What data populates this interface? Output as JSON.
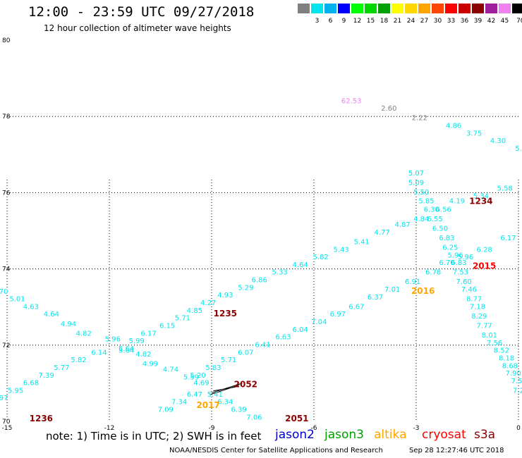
{
  "header": {
    "title": "12:00 - 23:59 UTC 09/27/2018",
    "subtitle": "12 hour collection of altimeter wave heights"
  },
  "color_scale": {
    "unit": "(ft)",
    "items": [
      {
        "label": "",
        "color": "#808080"
      },
      {
        "label": "3",
        "color": "#00e5ee"
      },
      {
        "label": "6",
        "color": "#00b2ee"
      },
      {
        "label": "9",
        "color": "#0000ff"
      },
      {
        "label": "12",
        "color": "#00ff00"
      },
      {
        "label": "15",
        "color": "#00d700"
      },
      {
        "label": "18",
        "color": "#00a000"
      },
      {
        "label": "21",
        "color": "#ffff00"
      },
      {
        "label": "24",
        "color": "#ffd700"
      },
      {
        "label": "27",
        "color": "#ffa500"
      },
      {
        "label": "30",
        "color": "#ff4500"
      },
      {
        "label": "33",
        "color": "#ff0000"
      },
      {
        "label": "36",
        "color": "#c80000"
      },
      {
        "label": "39",
        "color": "#8b0000"
      },
      {
        "label": "42",
        "color": "#a020a0"
      },
      {
        "label": "45",
        "color": "#ee82ee"
      },
      {
        "label": "70",
        "color": "#000000"
      }
    ]
  },
  "map": {
    "x_ticks": [
      {
        "lon": -15,
        "label": "-15"
      },
      {
        "lon": -12,
        "label": "-12"
      },
      {
        "lon": -9,
        "label": "-9"
      },
      {
        "lon": -6,
        "label": "-6"
      },
      {
        "lon": -3,
        "label": "-3"
      },
      {
        "lon": 0,
        "label": "0"
      }
    ],
    "y_ticks": [
      {
        "lat": 70,
        "label": "70"
      },
      {
        "lat": 72,
        "label": "72"
      },
      {
        "lat": 74,
        "label": "74"
      },
      {
        "lat": 76,
        "label": "76"
      },
      {
        "lat": 78,
        "label": "78"
      },
      {
        "lat": 80,
        "label": "80"
      }
    ],
    "grid_color": "#000000",
    "cyan": "#00e5ee",
    "swh_labels": [
      {
        "text": "62.53",
        "lon": -4.9,
        "lat": 78.35,
        "color": "#ee82ee"
      },
      {
        "text": "2.60",
        "lon": -3.8,
        "lat": 78.15,
        "color": "#808080"
      },
      {
        "text": "2.22",
        "lon": -2.9,
        "lat": 77.9,
        "color": "#808080"
      },
      {
        "text": "4.86",
        "lon": -1.9,
        "lat": 77.7,
        "color": "#00e5ee"
      },
      {
        "text": "3.75",
        "lon": -1.3,
        "lat": 77.5,
        "color": "#00e5ee"
      },
      {
        "text": "4.30",
        "lon": -0.6,
        "lat": 77.3,
        "color": "#00e5ee"
      },
      {
        "text": "5.",
        "lon": 0.0,
        "lat": 77.1,
        "color": "#00e5ee"
      },
      {
        "text": "5.07",
        "lon": -3.0,
        "lat": 76.45,
        "color": "#00e5ee"
      },
      {
        "text": "5.09",
        "lon": -3.0,
        "lat": 76.2,
        "color": "#00e5ee"
      },
      {
        "text": "5.50",
        "lon": -2.85,
        "lat": 75.95,
        "color": "#00e5ee"
      },
      {
        "text": "5.58",
        "lon": -0.4,
        "lat": 76.05,
        "color": "#00e5ee"
      },
      {
        "text": "5.34",
        "lon": -1.1,
        "lat": 75.85,
        "color": "#00e5ee"
      },
      {
        "text": "5.85",
        "lon": -2.7,
        "lat": 75.72,
        "color": "#00e5ee"
      },
      {
        "text": "4.19",
        "lon": -1.8,
        "lat": 75.72,
        "color": "#00e5ee"
      },
      {
        "text": "6.30",
        "lon": -2.55,
        "lat": 75.5,
        "color": "#00e5ee"
      },
      {
        "text": "6.56",
        "lon": -2.2,
        "lat": 75.5,
        "color": "#00e5ee"
      },
      {
        "text": "4.84",
        "lon": -2.85,
        "lat": 75.25,
        "color": "#00e5ee"
      },
      {
        "text": "6.55",
        "lon": -2.45,
        "lat": 75.25,
        "color": "#00e5ee"
      },
      {
        "text": "4.87",
        "lon": -3.4,
        "lat": 75.1,
        "color": "#00e5ee"
      },
      {
        "text": "6.50",
        "lon": -2.3,
        "lat": 75.0,
        "color": "#00e5ee"
      },
      {
        "text": "4.77",
        "lon": -4.0,
        "lat": 74.9,
        "color": "#00e5ee"
      },
      {
        "text": "6.83",
        "lon": -2.1,
        "lat": 74.75,
        "color": "#00e5ee"
      },
      {
        "text": "6.17",
        "lon": -0.3,
        "lat": 74.75,
        "color": "#00e5ee"
      },
      {
        "text": "5.41",
        "lon": -4.6,
        "lat": 74.65,
        "color": "#00e5ee"
      },
      {
        "text": "6.25",
        "lon": -2.0,
        "lat": 74.5,
        "color": "#00e5ee"
      },
      {
        "text": "6.28",
        "lon": -1.0,
        "lat": 74.45,
        "color": "#00e5ee"
      },
      {
        "text": "5.43",
        "lon": -5.2,
        "lat": 74.45,
        "color": "#00e5ee"
      },
      {
        "text": "5.96",
        "lon": -1.85,
        "lat": 74.3,
        "color": "#00e5ee"
      },
      {
        "text": "5.96",
        "lon": -1.55,
        "lat": 74.25,
        "color": "#00e5ee"
      },
      {
        "text": "5.82",
        "lon": -5.8,
        "lat": 74.25,
        "color": "#00e5ee"
      },
      {
        "text": "6.70",
        "lon": -2.1,
        "lat": 74.1,
        "color": "#00e5ee"
      },
      {
        "text": "6.83",
        "lon": -1.75,
        "lat": 74.1,
        "color": "#00e5ee"
      },
      {
        "text": "4.64",
        "lon": -6.4,
        "lat": 74.05,
        "color": "#00e5ee"
      },
      {
        "text": "7.53",
        "lon": -1.7,
        "lat": 73.85,
        "color": "#00e5ee"
      },
      {
        "text": "6.78",
        "lon": -2.5,
        "lat": 73.85,
        "color": "#00e5ee"
      },
      {
        "text": "5.33",
        "lon": -7.0,
        "lat": 73.85,
        "color": "#00e5ee"
      },
      {
        "text": "6.91",
        "lon": -3.1,
        "lat": 73.6,
        "color": "#00e5ee"
      },
      {
        "text": "7.60",
        "lon": -1.6,
        "lat": 73.6,
        "color": "#00e5ee"
      },
      {
        "text": "6.86",
        "lon": -7.6,
        "lat": 73.65,
        "color": "#00e5ee"
      },
      {
        "text": "7.01",
        "lon": -3.7,
        "lat": 73.4,
        "color": "#00e5ee"
      },
      {
        "text": "7.46",
        "lon": -1.45,
        "lat": 73.4,
        "color": "#00e5ee"
      },
      {
        "text": "5.29",
        "lon": -8.0,
        "lat": 73.45,
        "color": "#00e5ee"
      },
      {
        "text": "6.37",
        "lon": -4.2,
        "lat": 73.2,
        "color": "#00e5ee"
      },
      {
        "text": "8.77",
        "lon": -1.3,
        "lat": 73.15,
        "color": "#00e5ee"
      },
      {
        "text": "4.93",
        "lon": -8.6,
        "lat": 73.25,
        "color": "#00e5ee"
      },
      {
        "text": "6.67",
        "lon": -4.75,
        "lat": 72.95,
        "color": "#00e5ee"
      },
      {
        "text": "7.18",
        "lon": -1.2,
        "lat": 72.95,
        "color": "#00e5ee"
      },
      {
        "text": "4.27",
        "lon": -9.1,
        "lat": 73.05,
        "color": "#00e5ee"
      },
      {
        "text": "6.97",
        "lon": -5.3,
        "lat": 72.75,
        "color": "#00e5ee"
      },
      {
        "text": "8.29",
        "lon": -1.15,
        "lat": 72.7,
        "color": "#00e5ee"
      },
      {
        "text": "4.85",
        "lon": -9.5,
        "lat": 72.85,
        "color": "#00e5ee"
      },
      {
        "text": "7.04",
        "lon": -5.85,
        "lat": 72.55,
        "color": "#00e5ee"
      },
      {
        "text": "7.77",
        "lon": -1.0,
        "lat": 72.45,
        "color": "#00e5ee"
      },
      {
        "text": "5.71",
        "lon": -9.85,
        "lat": 72.65,
        "color": "#00e5ee"
      },
      {
        "text": "6.04",
        "lon": -6.4,
        "lat": 72.35,
        "color": "#00e5ee"
      },
      {
        "text": "8.01",
        "lon": -0.85,
        "lat": 72.2,
        "color": "#00e5ee"
      },
      {
        "text": "6.15",
        "lon": -10.3,
        "lat": 72.45,
        "color": "#00e5ee"
      },
      {
        "text": "6.63",
        "lon": -6.9,
        "lat": 72.15,
        "color": "#00e5ee"
      },
      {
        "text": "7.56",
        "lon": -0.7,
        "lat": 72.0,
        "color": "#00e5ee"
      },
      {
        "text": "6.17",
        "lon": -10.85,
        "lat": 72.25,
        "color": "#00e5ee"
      },
      {
        "text": "6.41",
        "lon": -7.5,
        "lat": 71.95,
        "color": "#00e5ee"
      },
      {
        "text": "8.52",
        "lon": -0.5,
        "lat": 71.8,
        "color": "#00e5ee"
      },
      {
        "text": "5.99",
        "lon": -11.2,
        "lat": 72.05,
        "color": "#00e5ee"
      },
      {
        "text": "6.07",
        "lon": -8.0,
        "lat": 71.75,
        "color": "#00e5ee"
      },
      {
        "text": "8.18",
        "lon": -0.35,
        "lat": 71.6,
        "color": "#00e5ee"
      },
      {
        "text": "5.96",
        "lon": -11.9,
        "lat": 72.1,
        "color": "#00e5ee"
      },
      {
        "text": "5.64",
        "lon": -11.5,
        "lat": 71.85,
        "color": "#00e5ee"
      },
      {
        "text": "5.64",
        "lon": -11.5,
        "lat": 71.8,
        "color": "#00e5ee"
      },
      {
        "text": "6.14",
        "lon": -12.3,
        "lat": 71.75,
        "color": "#00e5ee"
      },
      {
        "text": "4.82",
        "lon": -11.0,
        "lat": 71.7,
        "color": "#00e5ee"
      },
      {
        "text": "5.71",
        "lon": -8.5,
        "lat": 71.55,
        "color": "#00e5ee"
      },
      {
        "text": "8.68",
        "lon": -0.25,
        "lat": 71.4,
        "color": "#00e5ee"
      },
      {
        "text": "4.82",
        "lon": -12.75,
        "lat": 72.25,
        "color": "#00e5ee"
      },
      {
        "text": "4.94",
        "lon": -13.2,
        "lat": 72.5,
        "color": "#00e5ee"
      },
      {
        "text": "5.82",
        "lon": -12.9,
        "lat": 71.55,
        "color": "#00e5ee"
      },
      {
        "text": "4.99",
        "lon": -10.8,
        "lat": 71.45,
        "color": "#00e5ee"
      },
      {
        "text": "5.83",
        "lon": -8.95,
        "lat": 71.35,
        "color": "#00e5ee"
      },
      {
        "text": "7.90",
        "lon": -0.15,
        "lat": 71.2,
        "color": "#00e5ee"
      },
      {
        "text": "4.64",
        "lon": -13.7,
        "lat": 72.75,
        "color": "#00e5ee"
      },
      {
        "text": "5.77",
        "lon": -13.4,
        "lat": 71.35,
        "color": "#00e5ee"
      },
      {
        "text": "4.74",
        "lon": -10.2,
        "lat": 71.3,
        "color": "#00e5ee"
      },
      {
        "text": "5.20",
        "lon": -9.4,
        "lat": 71.15,
        "color": "#00e5ee"
      },
      {
        "text": "7.5",
        "lon": -0.05,
        "lat": 71.0,
        "color": "#00e5ee"
      },
      {
        "text": "4.63",
        "lon": -14.3,
        "lat": 72.95,
        "color": "#00e5ee"
      },
      {
        "text": "7.39",
        "lon": -13.85,
        "lat": 71.15,
        "color": "#00e5ee"
      },
      {
        "text": "5.59",
        "lon": -9.6,
        "lat": 71.1,
        "color": "#00e5ee"
      },
      {
        "text": "4.69",
        "lon": -9.3,
        "lat": 70.95,
        "color": "#00e5ee"
      },
      {
        "text": "5.01",
        "lon": -14.7,
        "lat": 73.15,
        "color": "#00e5ee"
      },
      {
        "text": "6.68",
        "lon": -14.3,
        "lat": 70.95,
        "color": "#00e5ee"
      },
      {
        "text": "5.41",
        "lon": -8.9,
        "lat": 70.65,
        "color": "#00e5ee"
      },
      {
        "text": "6.47",
        "lon": -9.5,
        "lat": 70.65,
        "color": "#00e5ee"
      },
      {
        "text": "7.2",
        "lon": 0.0,
        "lat": 70.75,
        "color": "#00e5ee"
      },
      {
        "text": "4.70",
        "lon": -15.2,
        "lat": 73.35,
        "color": "#00e5ee"
      },
      {
        "text": "5.95",
        "lon": -14.75,
        "lat": 70.75,
        "color": "#00e5ee"
      },
      {
        "text": "7.34",
        "lon": -9.95,
        "lat": 70.45,
        "color": "#00e5ee"
      },
      {
        "text": "6.34",
        "lon": -8.6,
        "lat": 70.45,
        "color": "#00e5ee"
      },
      {
        "text": "4.05",
        "lon": -15.7,
        "lat": 73.55,
        "color": "#00e5ee"
      },
      {
        "text": "5.97",
        "lon": -15.2,
        "lat": 70.55,
        "color": "#00e5ee"
      },
      {
        "text": "7.09",
        "lon": -10.35,
        "lat": 70.25,
        "color": "#00e5ee"
      },
      {
        "text": "6.39",
        "lon": -8.2,
        "lat": 70.25,
        "color": "#00e5ee"
      },
      {
        "text": "4.27",
        "lon": -16.2,
        "lat": 73.75,
        "color": "#00e5ee"
      },
      {
        "text": "6.04",
        "lon": -15.6,
        "lat": 70.4,
        "color": "#00e5ee"
      },
      {
        "text": "6.03",
        "lon": -15.95,
        "lat": 70.25,
        "color": "#00e5ee"
      },
      {
        "text": "7.06",
        "lon": -7.75,
        "lat": 70.05,
        "color": "#00e5ee"
      },
      {
        "text": "6.20",
        "lon": -16.4,
        "lat": 70.05,
        "color": "#00e5ee"
      }
    ],
    "orbit_labels": [
      {
        "text": "1234",
        "lon": -1.1,
        "lat": 75.7,
        "color": "#8b0000"
      },
      {
        "text": "2015",
        "lon": -1.0,
        "lat": 74.0,
        "color": "#ff0000"
      },
      {
        "text": "2016",
        "lon": -2.8,
        "lat": 73.35,
        "color": "#ffa500"
      },
      {
        "text": "1235",
        "lon": -8.6,
        "lat": 72.75,
        "color": "#8b0000"
      },
      {
        "text": "2052",
        "lon": -8.0,
        "lat": 70.9,
        "color": "#8b0000"
      },
      {
        "text": "2017",
        "lon": -9.1,
        "lat": 70.35,
        "color": "#ffa500"
      },
      {
        "text": "2051",
        "lon": -6.5,
        "lat": 70.0,
        "color": "#8b0000"
      },
      {
        "text": "1236",
        "lon": -14.0,
        "lat": 70.0,
        "color": "#8b0000"
      }
    ]
  },
  "footer": {
    "note": "note: 1) Time is in UTC; 2) SWH is in feet",
    "satellites": [
      {
        "name": "jason2",
        "color": "#0000cc"
      },
      {
        "name": "jason3",
        "color": "#00a000"
      },
      {
        "name": "altika",
        "color": "#ffa500"
      },
      {
        "name": "cryosat",
        "color": "#ff0000"
      },
      {
        "name": "s3a",
        "color": "#8b0000"
      }
    ],
    "credit": "NOAA/NESDIS Center for Satellite Applications and Research",
    "timestamp": "Sep 28 12:27:46 UTC 2018"
  }
}
